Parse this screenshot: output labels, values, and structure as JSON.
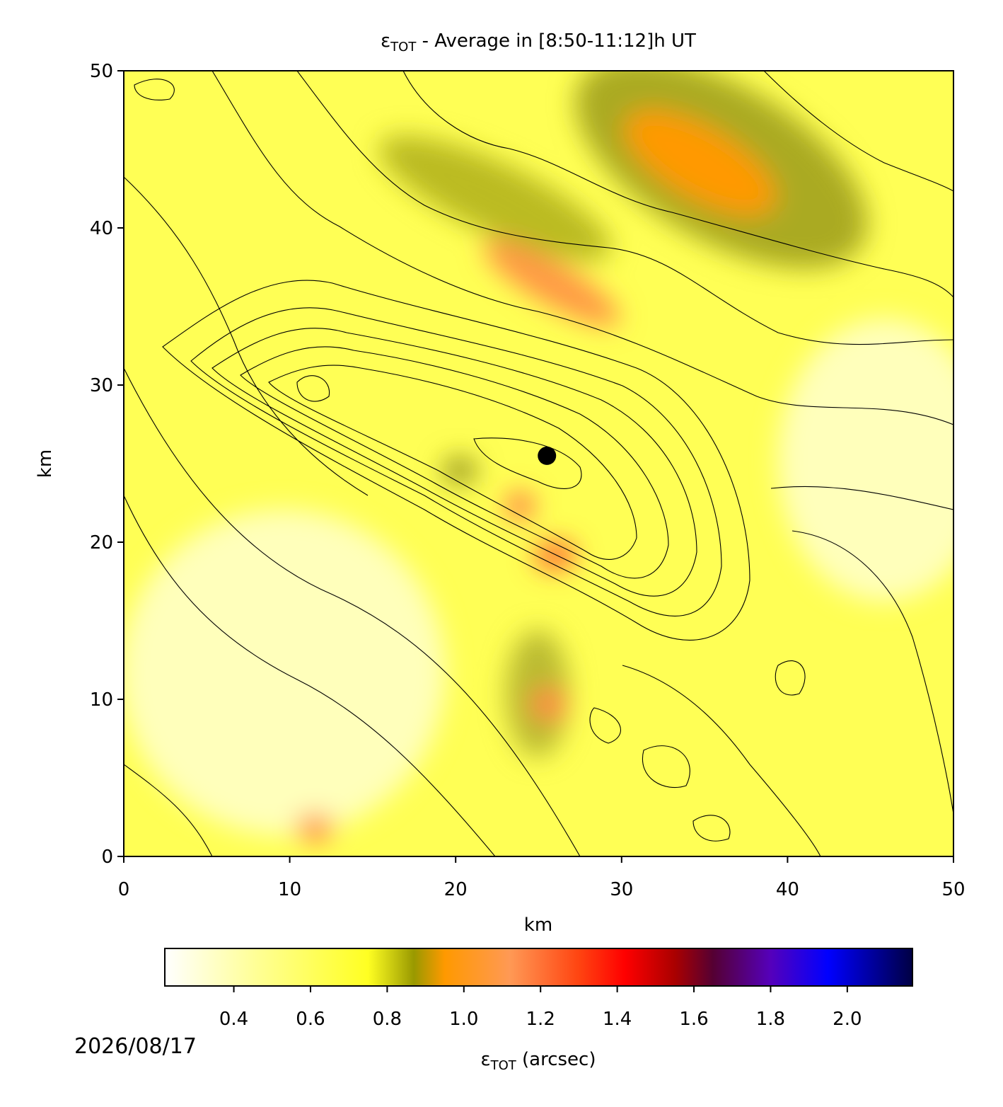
{
  "chart_data": {
    "type": "contour",
    "title": {
      "symbol": "ε",
      "subscript": "TOT",
      "text": " - Average in [8:50-11:12]h UT"
    },
    "xlabel": "km",
    "ylabel": "km",
    "xlim": [
      0,
      50
    ],
    "ylim": [
      0,
      50
    ],
    "xticks": [
      0,
      10,
      20,
      30,
      40,
      50
    ],
    "yticks": [
      0,
      10,
      20,
      30,
      40,
      50
    ],
    "marker": {
      "x": 25.5,
      "y": 25.5,
      "color": "#000000"
    },
    "colorbar": {
      "label": {
        "symbol": "ε",
        "subscript": "TOT",
        "text": " (arcsec)"
      },
      "lim": [
        0.22,
        2.17
      ],
      "ticks": [
        0.4,
        0.6,
        0.8,
        {
          "value": 1,
          "label": "1.0"
        },
        1.2,
        1.4,
        1.6,
        1.8,
        {
          "value": 2,
          "label": "2.0"
        }
      ],
      "cmap": [
        {
          "value": 0.22,
          "color": "#ffffff"
        },
        {
          "value": 0.45,
          "color": "#ffff99"
        },
        {
          "value": 0.75,
          "color": "#ffff22"
        },
        {
          "value": 0.87,
          "color": "#999900"
        },
        {
          "value": 0.95,
          "color": "#ff9900"
        },
        {
          "value": 1.12,
          "color": "#ff9955"
        },
        {
          "value": 1.3,
          "color": "#ff4411"
        },
        {
          "value": 1.42,
          "color": "#ff0000"
        },
        {
          "value": 1.55,
          "color": "#aa0000"
        },
        {
          "value": 1.65,
          "color": "#550033"
        },
        {
          "value": 1.8,
          "color": "#5500bb"
        },
        {
          "value": 1.95,
          "color": "#0000ff"
        },
        {
          "value": 2.17,
          "color": "#000044"
        }
      ]
    },
    "date": "2026/08/17"
  }
}
